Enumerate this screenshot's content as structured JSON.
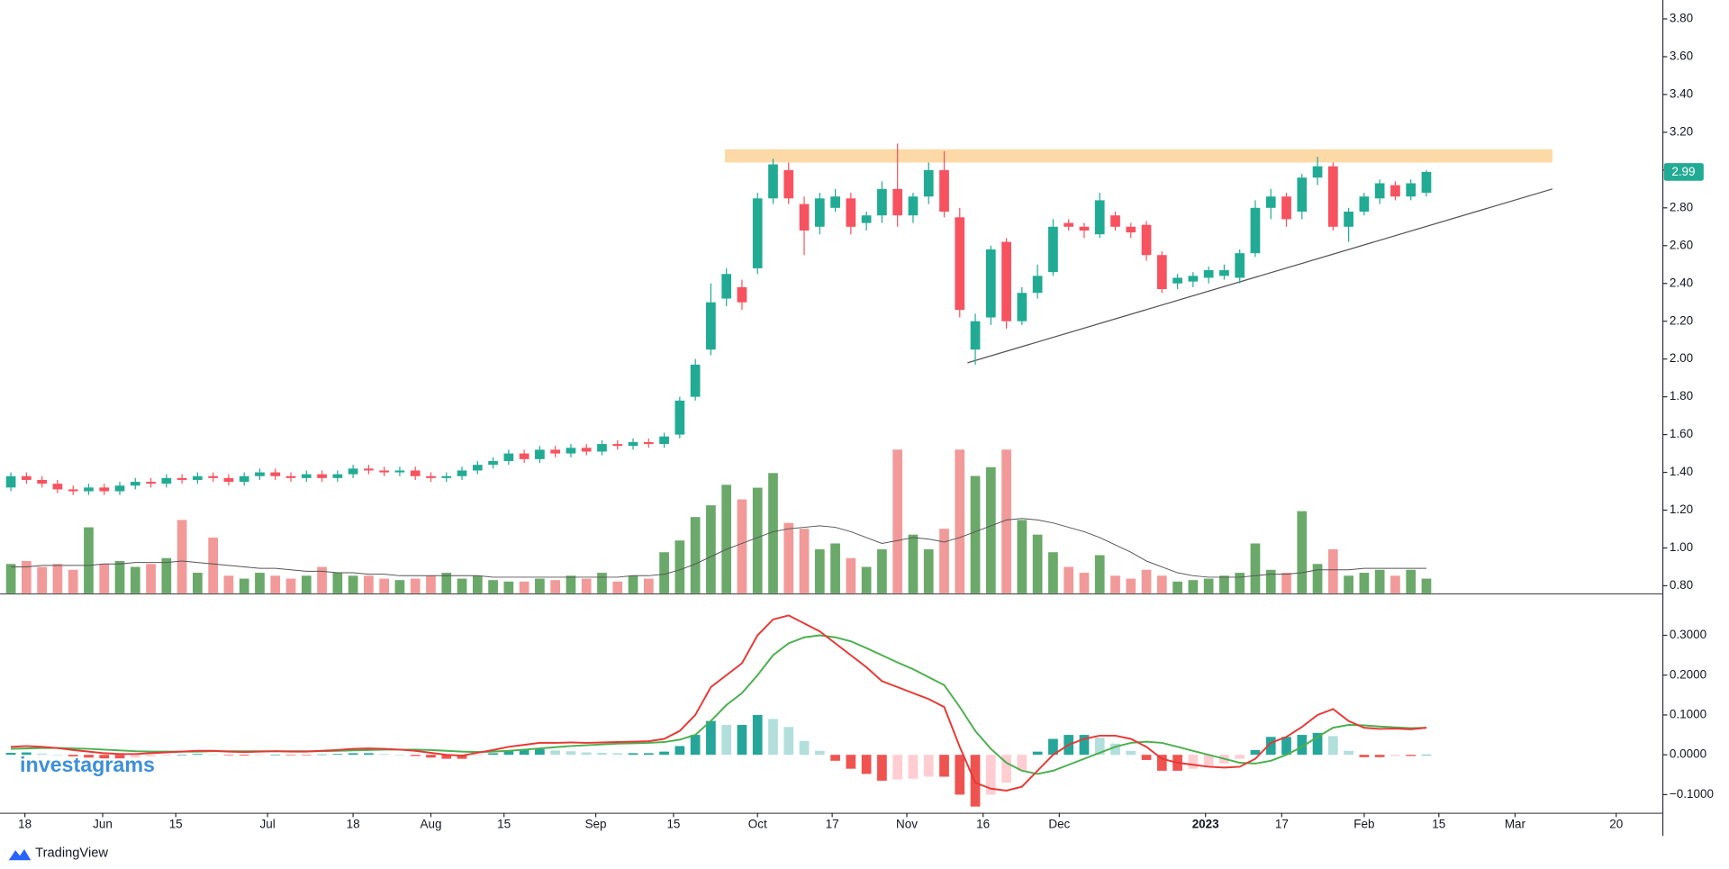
{
  "brand": {
    "watermark": "investagrams",
    "footer": "TradingView"
  },
  "chart_data": [
    {
      "type": "candlestick",
      "xlim": [
        -0.7,
        106.2
      ],
      "ylim": [
        0.76,
        3.9
      ],
      "yticks": [
        {
          "value": 0.8,
          "label": "0.80"
        },
        {
          "value": 1.0,
          "label": "1.00"
        },
        {
          "value": 1.2,
          "label": "1.20"
        },
        {
          "value": 1.4,
          "label": "1.40"
        },
        {
          "value": 1.6,
          "label": "1.60"
        },
        {
          "value": 1.8,
          "label": "1.80"
        },
        {
          "value": 2.0,
          "label": "2.00"
        },
        {
          "value": 2.2,
          "label": "2.20"
        },
        {
          "value": 2.4,
          "label": "2.40"
        },
        {
          "value": 2.6,
          "label": "2.60"
        },
        {
          "value": 2.8,
          "label": "2.80"
        },
        {
          "value": 3.0,
          "label": "3.00"
        },
        {
          "value": 3.2,
          "label": "3.20"
        },
        {
          "value": 3.4,
          "label": "3.40"
        },
        {
          "value": 3.6,
          "label": "3.60"
        },
        {
          "value": 3.8,
          "label": "3.80"
        }
      ],
      "up_color": "#22ab94",
      "down_color": "#f7525f",
      "open": [
        1.32,
        1.38,
        1.36,
        1.34,
        1.31,
        1.3,
        1.32,
        1.3,
        1.33,
        1.35,
        1.34,
        1.37,
        1.36,
        1.38,
        1.37,
        1.35,
        1.38,
        1.4,
        1.38,
        1.37,
        1.39,
        1.37,
        1.39,
        1.42,
        1.41,
        1.4,
        1.41,
        1.38,
        1.37,
        1.38,
        1.41,
        1.44,
        1.46,
        1.5,
        1.47,
        1.52,
        1.5,
        1.53,
        1.51,
        1.55,
        1.54,
        1.56,
        1.55,
        1.6,
        1.8,
        2.05,
        2.32,
        2.38,
        2.48,
        2.85,
        3.0,
        2.82,
        2.7,
        2.8,
        2.85,
        2.72,
        2.76,
        2.9,
        2.76,
        2.86,
        3.0,
        2.75,
        2.05,
        2.22,
        2.62,
        2.2,
        2.35,
        2.46,
        2.72,
        2.7,
        2.66,
        2.76,
        2.7,
        2.71,
        2.55,
        2.4,
        2.41,
        2.43,
        2.44,
        2.43,
        2.56,
        2.8,
        2.86,
        2.78,
        2.96,
        3.02,
        2.7,
        2.78,
        2.85,
        2.92,
        2.86,
        2.88
      ],
      "high": [
        1.4,
        1.4,
        1.38,
        1.36,
        1.33,
        1.34,
        1.34,
        1.35,
        1.37,
        1.37,
        1.39,
        1.39,
        1.4,
        1.4,
        1.39,
        1.4,
        1.42,
        1.42,
        1.4,
        1.41,
        1.41,
        1.41,
        1.44,
        1.44,
        1.43,
        1.43,
        1.43,
        1.4,
        1.4,
        1.43,
        1.46,
        1.48,
        1.52,
        1.52,
        1.54,
        1.54,
        1.55,
        1.55,
        1.57,
        1.57,
        1.58,
        1.58,
        1.61,
        1.8,
        2.0,
        2.4,
        2.48,
        2.42,
        2.88,
        3.06,
        3.04,
        2.86,
        2.88,
        2.9,
        2.88,
        2.78,
        2.94,
        3.14,
        2.88,
        3.04,
        3.1,
        2.8,
        2.24,
        2.6,
        2.64,
        2.38,
        2.5,
        2.74,
        2.74,
        2.72,
        2.88,
        2.78,
        2.72,
        2.73,
        2.57,
        2.45,
        2.46,
        2.49,
        2.5,
        2.58,
        2.84,
        2.9,
        2.88,
        2.98,
        3.07,
        3.04,
        2.8,
        2.88,
        2.95,
        2.94,
        2.95,
        3.0
      ],
      "low": [
        1.3,
        1.34,
        1.32,
        1.29,
        1.28,
        1.28,
        1.28,
        1.28,
        1.31,
        1.32,
        1.32,
        1.34,
        1.34,
        1.35,
        1.33,
        1.33,
        1.36,
        1.36,
        1.35,
        1.35,
        1.35,
        1.35,
        1.37,
        1.39,
        1.38,
        1.38,
        1.36,
        1.35,
        1.35,
        1.36,
        1.39,
        1.42,
        1.44,
        1.45,
        1.45,
        1.48,
        1.48,
        1.49,
        1.49,
        1.52,
        1.52,
        1.53,
        1.53,
        1.58,
        1.78,
        2.02,
        2.28,
        2.26,
        2.45,
        2.82,
        2.82,
        2.55,
        2.66,
        2.78,
        2.66,
        2.68,
        2.72,
        2.7,
        2.72,
        2.82,
        2.75,
        2.22,
        1.97,
        2.18,
        2.16,
        2.18,
        2.32,
        2.44,
        2.68,
        2.64,
        2.64,
        2.68,
        2.64,
        2.52,
        2.35,
        2.37,
        2.38,
        2.4,
        2.42,
        2.4,
        2.54,
        2.74,
        2.7,
        2.74,
        2.92,
        2.68,
        2.62,
        2.76,
        2.82,
        2.84,
        2.84,
        2.86
      ],
      "close": [
        1.38,
        1.36,
        1.34,
        1.31,
        1.3,
        1.32,
        1.3,
        1.33,
        1.35,
        1.34,
        1.37,
        1.36,
        1.38,
        1.37,
        1.35,
        1.38,
        1.4,
        1.38,
        1.37,
        1.39,
        1.37,
        1.39,
        1.42,
        1.41,
        1.4,
        1.41,
        1.38,
        1.37,
        1.38,
        1.41,
        1.44,
        1.46,
        1.5,
        1.47,
        1.52,
        1.5,
        1.53,
        1.51,
        1.55,
        1.54,
        1.56,
        1.55,
        1.59,
        1.78,
        1.97,
        2.3,
        2.45,
        2.3,
        2.85,
        3.03,
        2.85,
        2.68,
        2.85,
        2.86,
        2.7,
        2.76,
        2.9,
        2.76,
        2.86,
        3.0,
        2.78,
        2.26,
        2.2,
        2.58,
        2.2,
        2.35,
        2.44,
        2.7,
        2.7,
        2.68,
        2.84,
        2.7,
        2.67,
        2.55,
        2.37,
        2.43,
        2.44,
        2.47,
        2.47,
        2.56,
        2.8,
        2.86,
        2.74,
        2.96,
        3.02,
        2.7,
        2.78,
        2.86,
        2.93,
        2.86,
        2.93,
        2.99
      ],
      "volume_lim": [
        0,
        100
      ],
      "volume_up_color": "#6aa96a",
      "volume_down_color": "#f19a99",
      "volume_ma_color": "#555555",
      "volume": [
        20,
        22,
        18,
        20,
        16,
        45,
        20,
        22,
        18,
        20,
        24,
        50,
        14,
        38,
        12,
        10,
        14,
        12,
        10,
        12,
        18,
        14,
        12,
        12,
        10,
        9,
        10,
        12,
        14,
        10,
        12,
        9,
        8,
        8,
        10,
        9,
        12,
        10,
        14,
        8,
        12,
        10,
        28,
        36,
        52,
        60,
        74,
        64,
        72,
        82,
        48,
        44,
        30,
        34,
        24,
        18,
        30,
        98,
        40,
        30,
        44,
        98,
        80,
        86,
        98,
        50,
        40,
        28,
        18,
        14,
        26,
        12,
        10,
        16,
        12,
        8,
        9,
        10,
        12,
        14,
        34,
        16,
        14,
        56,
        20,
        30,
        12,
        14,
        16,
        12,
        16,
        10
      ],
      "volume_ma": [
        18,
        18,
        19,
        19,
        19,
        19,
        20,
        20,
        21,
        21,
        21,
        22,
        21,
        20,
        19,
        18,
        17,
        17,
        16,
        15,
        15,
        14,
        14,
        13,
        13,
        12,
        12,
        12,
        12,
        12,
        12,
        11,
        11,
        11,
        11,
        11,
        11,
        11,
        11,
        11,
        12,
        12,
        13,
        16,
        20,
        25,
        30,
        34,
        38,
        42,
        44,
        45,
        46,
        45,
        42,
        38,
        34,
        36,
        38,
        37,
        35,
        38,
        42,
        46,
        50,
        51,
        50,
        48,
        45,
        42,
        38,
        33,
        28,
        22,
        18,
        14,
        12,
        11,
        11,
        11,
        12,
        13,
        13,
        14,
        16,
        16,
        16,
        17,
        17,
        17,
        17,
        17
      ],
      "resistance_zone": {
        "x": [
          45.9,
          99.1
        ],
        "y": [
          3.04,
          3.11
        ],
        "color": "#fcd9a6"
      },
      "trendline": {
        "x": [
          61.5,
          99.1
        ],
        "y": [
          1.98,
          2.9
        ],
        "color": "#555555"
      }
    },
    {
      "type": "macd",
      "xlim": [
        -0.7,
        106.2
      ],
      "ylim": [
        -0.14,
        0.4
      ],
      "yticks": [
        {
          "value": 0.3,
          "label": "0.3000"
        },
        {
          "value": 0.2,
          "label": "0.2000"
        },
        {
          "value": 0.1,
          "label": "0.1000"
        },
        {
          "value": 0,
          "label": "0.0000"
        },
        {
          "value": -0.1,
          "label": "−0.1000"
        }
      ],
      "xticks": [
        {
          "value": 0.9,
          "label": "18"
        },
        {
          "value": 5.9,
          "label": "Jun"
        },
        {
          "value": 10.6,
          "label": "15"
        },
        {
          "value": 16.5,
          "label": "Jul"
        },
        {
          "value": 22,
          "label": "18"
        },
        {
          "value": 27,
          "label": "Aug"
        },
        {
          "value": 31.7,
          "label": "15"
        },
        {
          "value": 37.6,
          "label": "Sep"
        },
        {
          "value": 42.6,
          "label": "15"
        },
        {
          "value": 48,
          "label": "Oct"
        },
        {
          "value": 52.8,
          "label": "17"
        },
        {
          "value": 57.6,
          "label": "Nov"
        },
        {
          "value": 62.5,
          "label": "16"
        },
        {
          "value": 67.4,
          "label": "Dec"
        },
        {
          "value": 76.8,
          "label": "2023",
          "bold": true
        },
        {
          "value": 81.7,
          "label": "17"
        },
        {
          "value": 87,
          "label": "Feb"
        },
        {
          "value": 91.8,
          "label": "15"
        },
        {
          "value": 96.7,
          "label": "Mar"
        },
        {
          "value": 103.2,
          "label": "20"
        }
      ],
      "macd": {
        "color": "#e53935",
        "values": [
          0.02,
          0.022,
          0.02,
          0.017,
          0.012,
          0.008,
          0.004,
          0.002,
          0.002,
          0.004,
          0.006,
          0.008,
          0.01,
          0.01,
          0.008,
          0.007,
          0.008,
          0.009,
          0.008,
          0.008,
          0.01,
          0.012,
          0.015,
          0.016,
          0.015,
          0.013,
          0.01,
          0.005,
          0.0,
          -0.002,
          0.005,
          0.012,
          0.02,
          0.025,
          0.03,
          0.03,
          0.031,
          0.03,
          0.031,
          0.032,
          0.033,
          0.034,
          0.04,
          0.06,
          0.1,
          0.17,
          0.2,
          0.23,
          0.3,
          0.34,
          0.35,
          0.33,
          0.31,
          0.28,
          0.25,
          0.22,
          0.185,
          0.17,
          0.155,
          0.14,
          0.12,
          0.02,
          -0.07,
          -0.085,
          -0.09,
          -0.08,
          -0.04,
          0.0,
          0.025,
          0.04,
          0.048,
          0.048,
          0.04,
          0.02,
          -0.01,
          -0.02,
          -0.025,
          -0.03,
          -0.032,
          -0.03,
          -0.01,
          0.03,
          0.045,
          0.07,
          0.1,
          0.115,
          0.085,
          0.068,
          0.065,
          0.066,
          0.064,
          0.068
        ]
      },
      "signal": {
        "color": "#4caf50",
        "values": [
          0.015,
          0.016,
          0.017,
          0.017,
          0.016,
          0.015,
          0.013,
          0.011,
          0.009,
          0.008,
          0.008,
          0.008,
          0.008,
          0.009,
          0.009,
          0.009,
          0.009,
          0.009,
          0.009,
          0.009,
          0.009,
          0.01,
          0.011,
          0.012,
          0.013,
          0.013,
          0.013,
          0.012,
          0.01,
          0.008,
          0.007,
          0.008,
          0.01,
          0.013,
          0.016,
          0.019,
          0.022,
          0.024,
          0.026,
          0.028,
          0.029,
          0.03,
          0.032,
          0.038,
          0.05,
          0.085,
          0.125,
          0.155,
          0.2,
          0.25,
          0.28,
          0.295,
          0.3,
          0.295,
          0.285,
          0.268,
          0.25,
          0.232,
          0.215,
          0.195,
          0.175,
          0.12,
          0.06,
          0.015,
          -0.02,
          -0.04,
          -0.048,
          -0.04,
          -0.025,
          -0.01,
          0.005,
          0.02,
          0.03,
          0.033,
          0.03,
          0.02,
          0.01,
          0.0,
          -0.01,
          -0.02,
          -0.022,
          -0.015,
          0.0,
          0.02,
          0.045,
          0.068,
          0.075,
          0.074,
          0.071,
          0.069,
          0.067,
          0.068
        ]
      },
      "histogram": {
        "colors": [
          "#26a69a",
          "#b2dfdb",
          "#ef5350",
          "#ffcdd2"
        ],
        "values": [
          0.005,
          0.006,
          0.003,
          0.0,
          -0.004,
          -0.007,
          -0.009,
          -0.009,
          -0.007,
          -0.004,
          -0.002,
          0.0,
          0.002,
          0.001,
          -0.001,
          -0.002,
          -0.001,
          0.0,
          -0.001,
          -0.001,
          0.001,
          0.002,
          0.004,
          0.004,
          0.002,
          0.0,
          -0.003,
          -0.007,
          -0.01,
          -0.01,
          -0.002,
          0.004,
          0.01,
          0.012,
          0.014,
          0.011,
          0.009,
          0.006,
          0.005,
          0.004,
          0.004,
          0.004,
          0.008,
          0.022,
          0.05,
          0.085,
          0.075,
          0.075,
          0.1,
          0.09,
          0.07,
          0.035,
          0.01,
          -0.015,
          -0.035,
          -0.048,
          -0.065,
          -0.062,
          -0.06,
          -0.055,
          -0.055,
          -0.1,
          -0.13,
          -0.1,
          -0.07,
          -0.04,
          0.008,
          0.04,
          0.05,
          0.05,
          0.043,
          0.028,
          0.01,
          -0.013,
          -0.04,
          -0.04,
          -0.035,
          -0.03,
          -0.022,
          -0.01,
          0.012,
          0.045,
          0.045,
          0.05,
          0.055,
          0.047,
          0.01,
          -0.006,
          -0.006,
          -0.003,
          -0.003,
          0.0
        ]
      }
    }
  ]
}
